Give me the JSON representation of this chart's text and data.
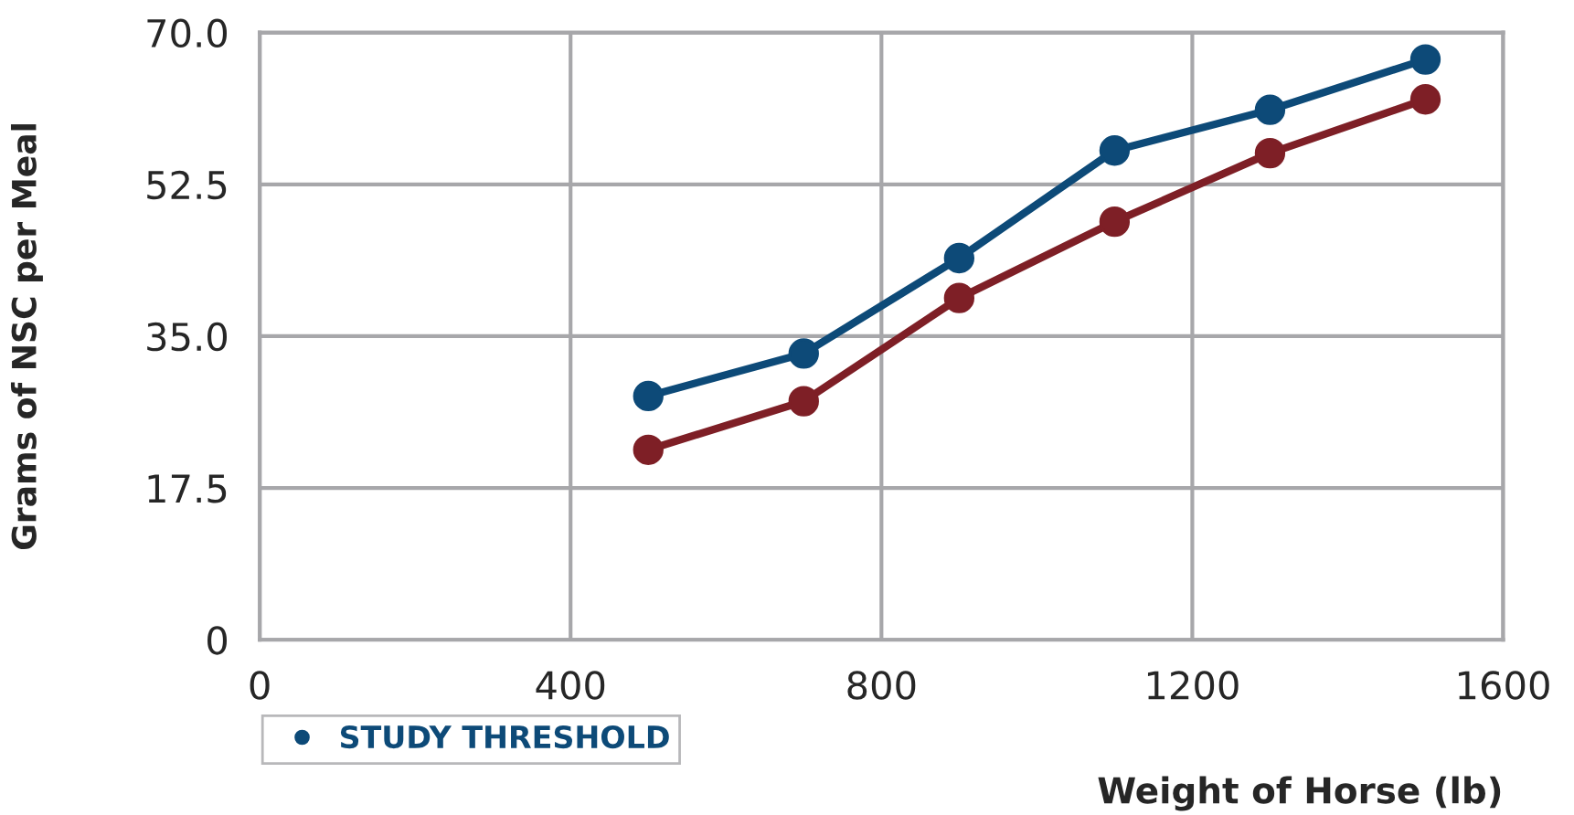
{
  "chart_data": {
    "type": "line",
    "xlabel": "Weight of Horse (lb)",
    "ylabel": "Grams of NSC per Meal",
    "x": [
      500,
      700,
      900,
      1100,
      1300,
      1500
    ],
    "series": [
      {
        "name": "STUDY THRESHOLD",
        "color": "#0d4a78",
        "values": [
          28.1,
          33.0,
          44.0,
          56.4,
          61.1,
          66.9
        ]
      },
      {
        "color": "#7e1f26",
        "values": [
          21.9,
          27.5,
          39.4,
          48.2,
          56.1,
          62.3
        ]
      }
    ],
    "xlim": [
      0,
      1600
    ],
    "xticks": [
      0,
      400,
      800,
      1200,
      1600
    ],
    "ylim": [
      0,
      70
    ],
    "yticks": [
      {
        "value": 0,
        "label": "0"
      },
      {
        "value": 17.5,
        "label": "17.5"
      },
      {
        "value": 35,
        "label": "35.0"
      },
      {
        "value": 52.5,
        "label": "52.5"
      },
      {
        "value": 70,
        "label": "70.0"
      }
    ],
    "grid": true,
    "legend": "bottom",
    "marker": "circle",
    "line_style": "solid"
  }
}
